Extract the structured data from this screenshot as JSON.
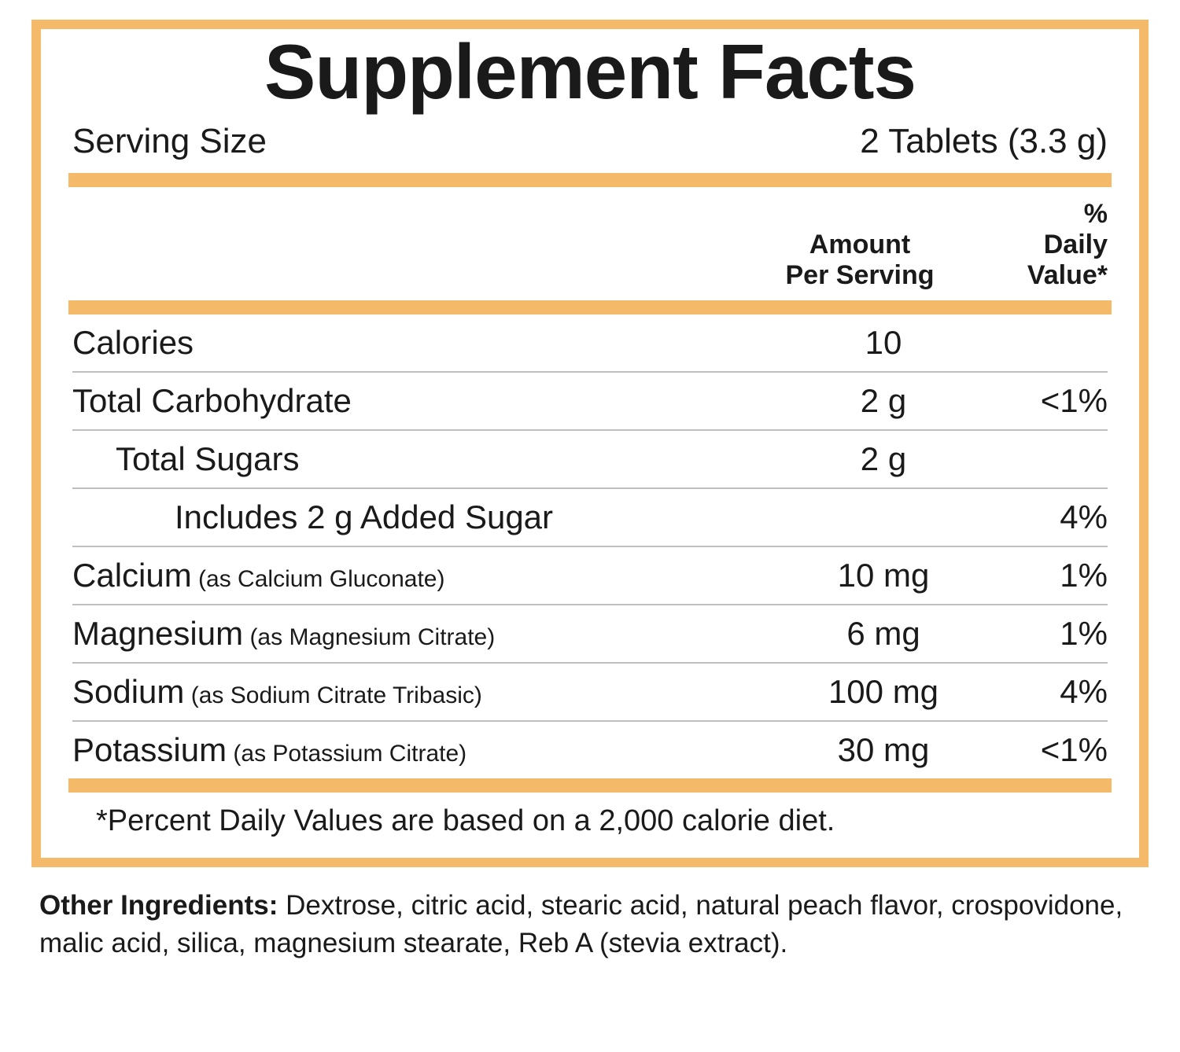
{
  "title": "Supplement Facts",
  "serving_size_label": "Serving Size",
  "serving_size_value": "2 Tablets (3.3 g)",
  "headers": {
    "amount": "Amount Per Serving",
    "dv": "% Daily Value*"
  },
  "rows": [
    {
      "label": "Calories",
      "subform": "",
      "amount": "10",
      "dv": "",
      "indent": 0,
      "border": false
    },
    {
      "label": "Total Carbohydrate",
      "subform": "",
      "amount": "2 g",
      "dv": "<1%",
      "indent": 0,
      "border": true
    },
    {
      "label": "Total Sugars",
      "subform": "",
      "amount": "2 g",
      "dv": "",
      "indent": 1,
      "border": true
    },
    {
      "label": "Includes 2 g Added Sugar",
      "subform": "",
      "amount": "",
      "dv": "4%",
      "indent": 2,
      "border": true
    },
    {
      "label": "Calcium",
      "subform": " (as Calcium Gluconate)",
      "amount": "10 mg",
      "dv": "1%",
      "indent": 0,
      "border": true
    },
    {
      "label": "Magnesium",
      "subform": " (as Magnesium Citrate)",
      "amount": "6 mg",
      "dv": "1%",
      "indent": 0,
      "border": true
    },
    {
      "label": "Sodium",
      "subform": " (as Sodium Citrate Tribasic)",
      "amount": "100 mg",
      "dv": "4%",
      "indent": 0,
      "border": true
    },
    {
      "label": "Potassium",
      "subform": " (as Potassium Citrate)",
      "amount": "30 mg",
      "dv": "<1%",
      "indent": 0,
      "border": true
    }
  ],
  "footnote": "*Percent Daily Values are based on a 2,000 calorie diet.",
  "other_label": "Other Ingredients:",
  "other_text": " Dextrose, citric acid, stearic acid, natural peach flavor, crospovidone, malic acid, silica, magnesium stearate, Reb A (stevia extract).",
  "colors": {
    "accent": "#f5b96a",
    "text": "#1a1a1a",
    "divider": "#bfbfbf",
    "background": "#ffffff"
  }
}
